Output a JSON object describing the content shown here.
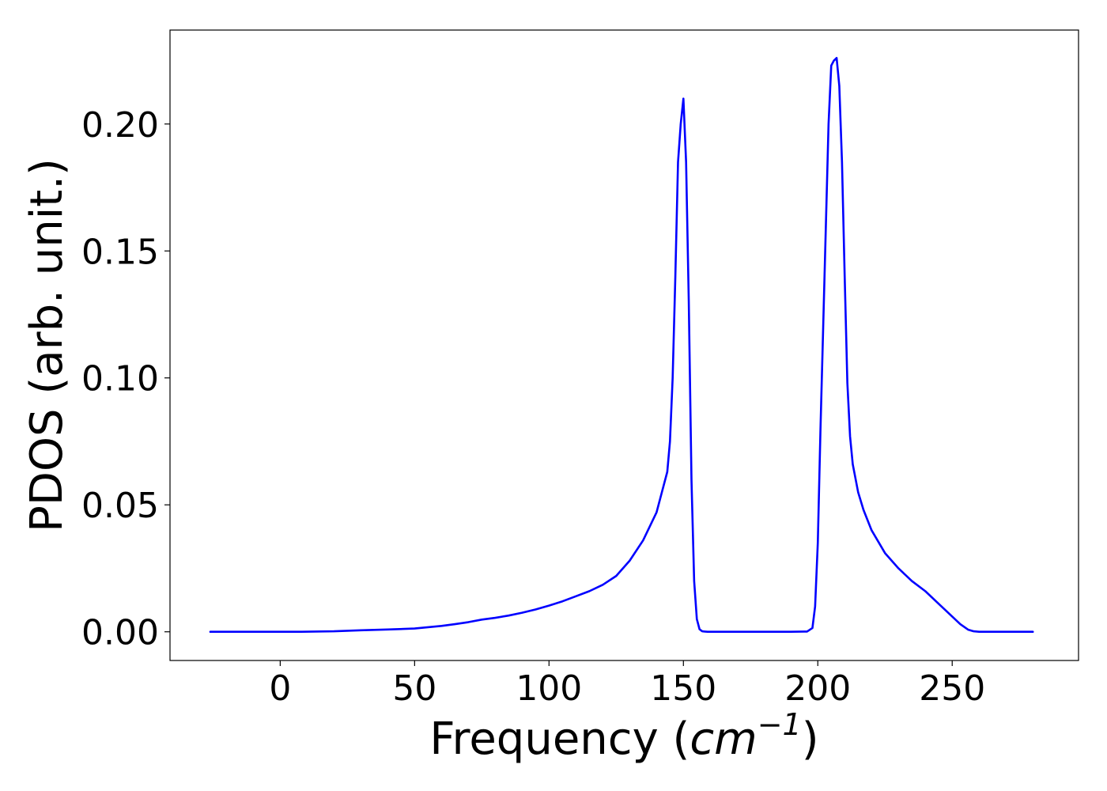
{
  "chart_data": {
    "type": "line",
    "title": "",
    "xlabel": "Frequency (cm⁻¹)",
    "xlabel_parts": {
      "prefix": "Frequency (",
      "unit_base": "cm",
      "unit_exp": "−1",
      "suffix": ")"
    },
    "ylabel": "PDOS (arb. unit.)",
    "xlim": [
      -41,
      297
    ],
    "ylim": [
      -0.0113,
      0.237
    ],
    "xticks": [
      0,
      50,
      100,
      150,
      200,
      250
    ],
    "xtick_labels": [
      "0",
      "50",
      "100",
      "150",
      "200",
      "250"
    ],
    "yticks": [
      0.0,
      0.05,
      0.1,
      0.15,
      0.2
    ],
    "ytick_labels": [
      "0.00",
      "0.05",
      "0.10",
      "0.15",
      "0.20"
    ],
    "grid": false,
    "series": [
      {
        "color": "#0000ff",
        "x": [
          -26,
          0,
          8,
          20,
          30,
          40,
          50,
          55,
          60,
          65,
          70,
          75,
          80,
          85,
          90,
          95,
          100,
          105,
          110,
          115,
          120,
          125,
          130,
          135,
          140,
          142,
          144,
          145,
          146,
          147,
          148,
          149,
          150,
          151,
          152,
          153,
          154,
          155,
          156,
          157,
          158,
          159,
          160,
          162,
          170,
          180,
          190,
          196,
          198,
          199,
          200,
          201,
          202,
          203,
          204,
          205,
          206,
          207,
          208,
          209,
          210,
          211,
          212,
          213,
          215,
          217,
          220,
          225,
          230,
          235,
          240,
          245,
          250,
          253,
          256,
          258,
          260,
          265,
          280
        ],
        "y": [
          0.0,
          0.0,
          0.0,
          0.0002,
          0.0006,
          0.0009,
          0.0013,
          0.0018,
          0.0023,
          0.003,
          0.0038,
          0.0048,
          0.0055,
          0.0064,
          0.0075,
          0.0088,
          0.0103,
          0.012,
          0.014,
          0.016,
          0.0185,
          0.022,
          0.028,
          0.036,
          0.047,
          0.055,
          0.063,
          0.075,
          0.1,
          0.14,
          0.185,
          0.2,
          0.21,
          0.185,
          0.13,
          0.06,
          0.02,
          0.005,
          0.001,
          0.0002,
          0.0001,
          0.0,
          0.0,
          0.0,
          0.0,
          0.0,
          0.0,
          0.0001,
          0.0015,
          0.01,
          0.035,
          0.08,
          0.12,
          0.16,
          0.2,
          0.223,
          0.225,
          0.226,
          0.215,
          0.185,
          0.14,
          0.098,
          0.077,
          0.066,
          0.055,
          0.048,
          0.04,
          0.031,
          0.025,
          0.02,
          0.016,
          0.011,
          0.006,
          0.003,
          0.0008,
          0.0002,
          0.0,
          0.0,
          0.0
        ]
      }
    ]
  }
}
